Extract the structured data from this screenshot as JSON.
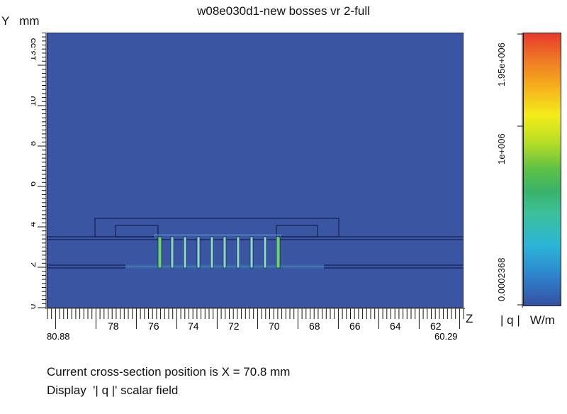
{
  "window": {
    "title": "w08e030d1-new bosses vr 2-full"
  },
  "y_axis": {
    "label": "Y   mm",
    "ticks": [
      "13.55",
      "10",
      "8",
      "6",
      "4",
      "2",
      "0"
    ]
  },
  "x_axis": {
    "label": "Z",
    "ticks": [
      "80.88",
      "78",
      "76",
      "74",
      "72",
      "70",
      "68",
      "66",
      "64",
      "62",
      "60.29"
    ]
  },
  "colorbar": {
    "ticks": [
      "1.95e+006",
      "1e+006",
      "0.0002368"
    ],
    "unit_label": "| q |   W/m"
  },
  "status": {
    "cross_section": "Current cross-section position is X = 70.8 mm",
    "display_field": "Display  '| q |' scalar field"
  },
  "colors": {
    "background_field": "#3a56a3",
    "outline": "#1b2a5e",
    "hot_green": "#6bd56a"
  }
}
